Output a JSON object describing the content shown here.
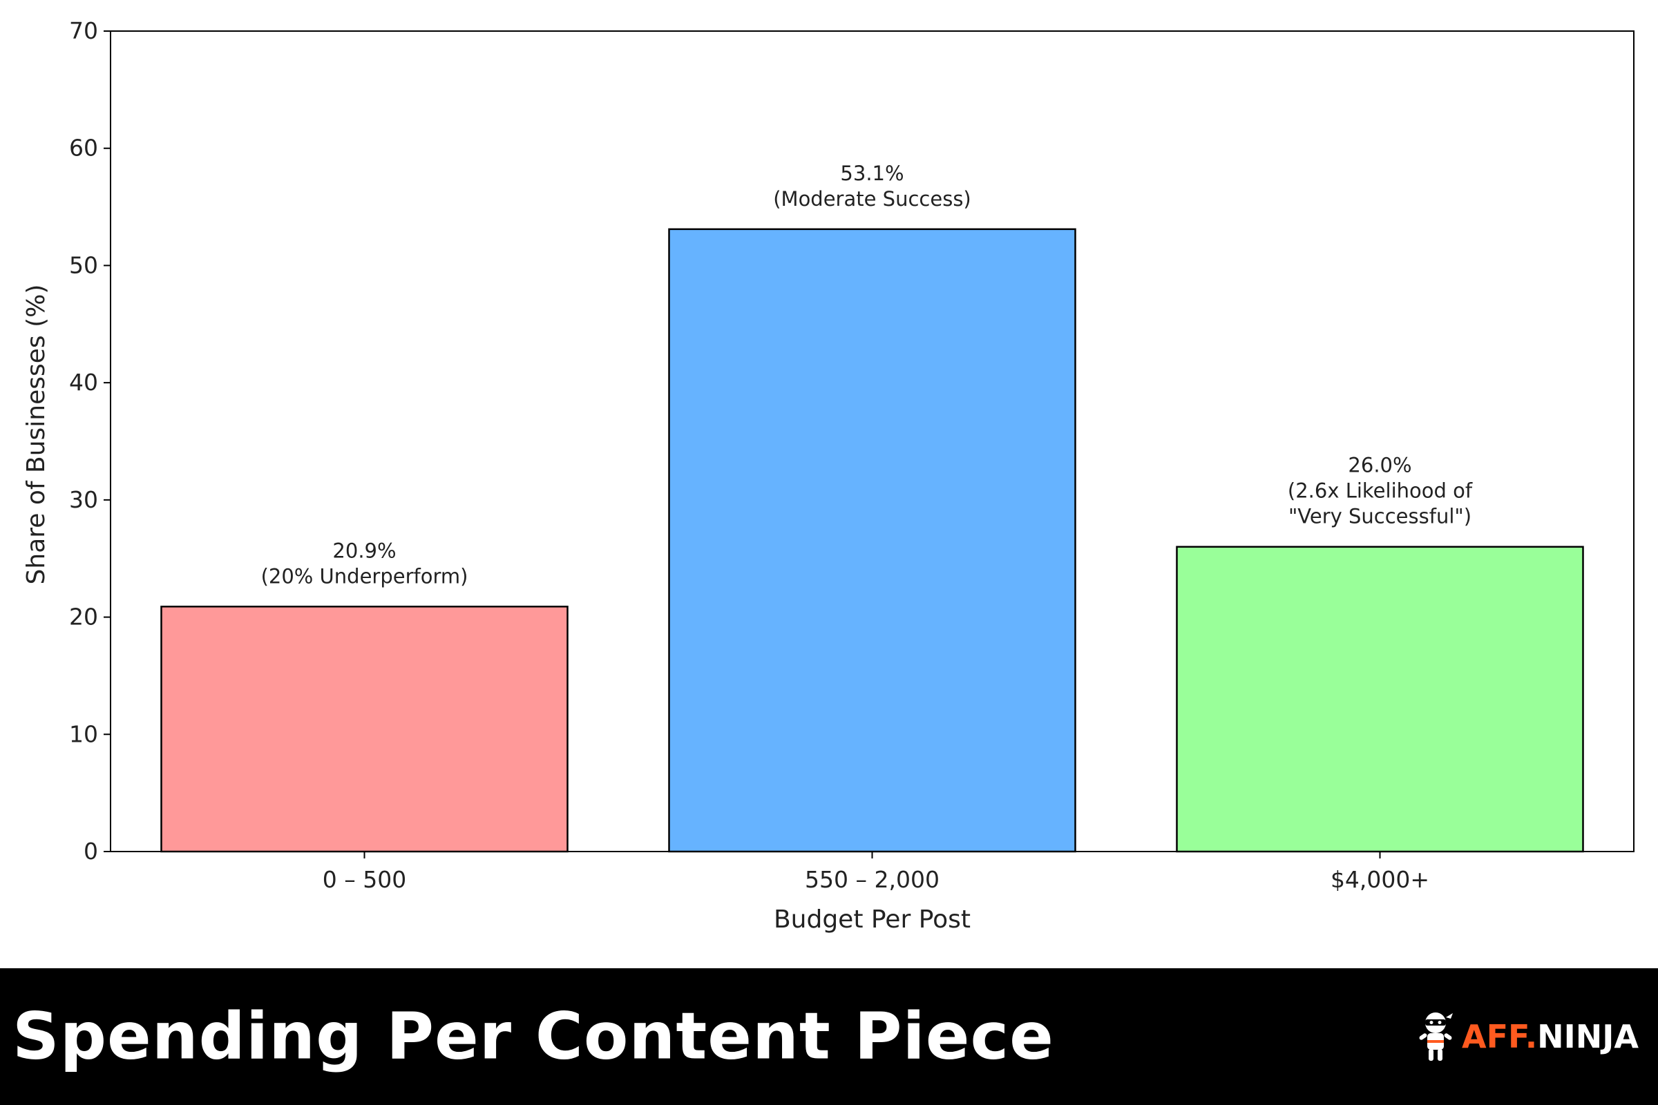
{
  "chart_data": {
    "type": "bar",
    "categories": [
      "0 – 500",
      "550 – 2,000",
      "$4,000+"
    ],
    "values": [
      20.9,
      53.1,
      26.0
    ],
    "colors": [
      "#ff9999",
      "#66b3ff",
      "#99ff99"
    ],
    "data_labels": [
      [
        "20.9%",
        "(20% Underperform)"
      ],
      [
        "53.1%",
        "(Moderate Success)"
      ],
      [
        "26.0%",
        "(2.6x Likelihood of",
        "\"Very Successful\")"
      ]
    ],
    "xlabel": "Budget Per Post",
    "ylabel": "Share of Businesses (%)",
    "ylim": [
      0,
      70
    ],
    "yticks": [
      0,
      10,
      20,
      30,
      40,
      50,
      60,
      70
    ],
    "grid": false
  },
  "footer": {
    "title": "Spending Per Content Piece",
    "brand_aff": "AFF",
    "brand_dot": ".",
    "brand_ninja": "NINJA",
    "brand_icon": "ninja-mascot-icon"
  }
}
